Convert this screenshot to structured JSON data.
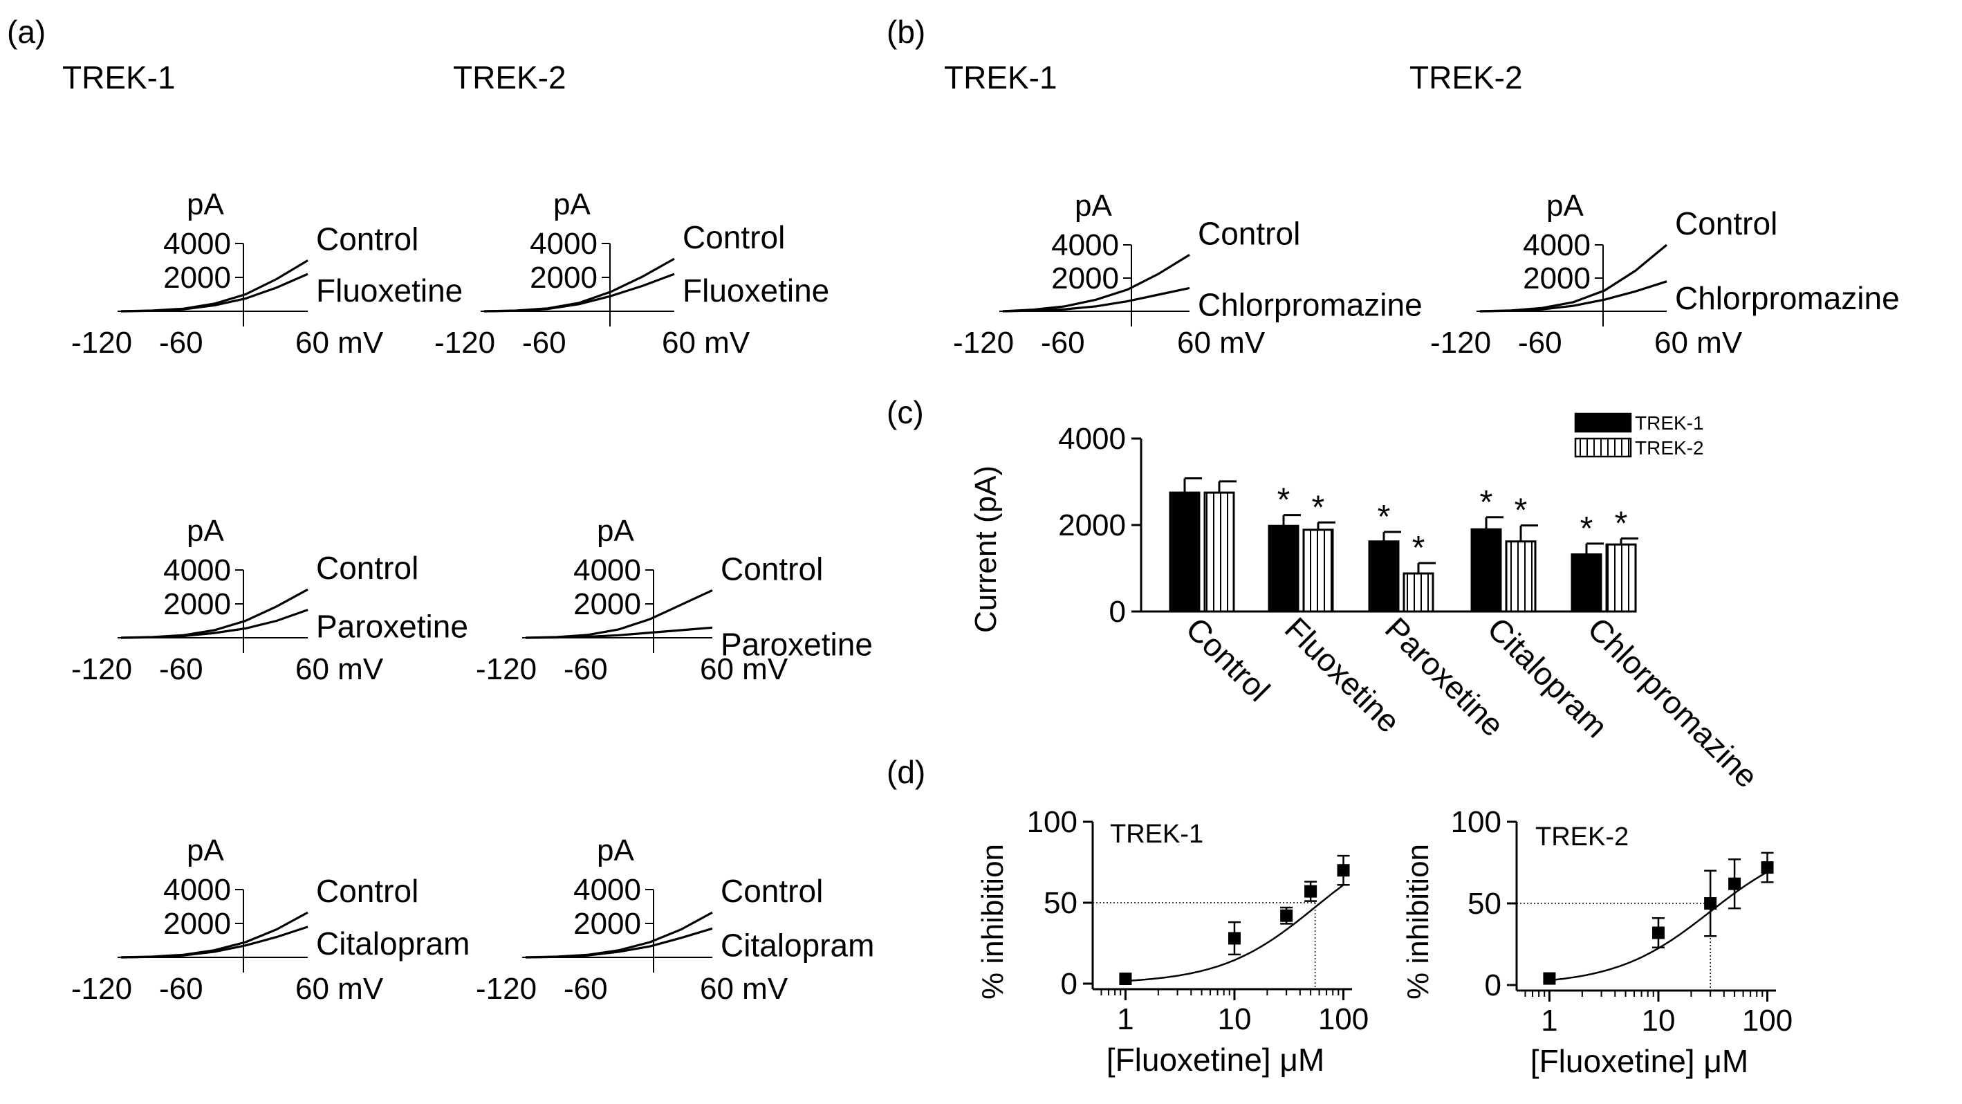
{
  "panel_labels": {
    "a": "(a)",
    "b": "(b)",
    "c": "(c)",
    "d": "(d)"
  },
  "chart_data": [
    {
      "id": "a1",
      "type": "line",
      "panel": "(a)",
      "title": "TREK-1",
      "ylabel": "pA",
      "y_tick_labels": [
        "4000",
        "2000"
      ],
      "x_tick_labels": [
        "-120",
        "-60",
        "60 mV"
      ],
      "xlim": [
        -120,
        60
      ],
      "ylim": [
        0,
        4000
      ],
      "series": [
        {
          "name": "Control",
          "x": [
            -120,
            -90,
            -60,
            -30,
            0,
            30,
            60
          ],
          "values": [
            0,
            40,
            150,
            450,
            1000,
            1900,
            3000
          ]
        },
        {
          "name": "Fluoxetine",
          "x": [
            -120,
            -90,
            -60,
            -30,
            0,
            30,
            60
          ],
          "values": [
            0,
            30,
            120,
            350,
            750,
            1400,
            2200
          ]
        }
      ]
    },
    {
      "id": "a2",
      "type": "line",
      "panel": "(a)",
      "title": "TREK-2",
      "ylabel": "pA",
      "y_tick_labels": [
        "4000",
        "2000"
      ],
      "x_tick_labels": [
        "-120",
        "-60",
        "60 mV"
      ],
      "xlim": [
        -120,
        60
      ],
      "ylim": [
        0,
        4000
      ],
      "series": [
        {
          "name": "Control",
          "x": [
            -120,
            -90,
            -60,
            -30,
            0,
            30,
            60
          ],
          "values": [
            0,
            40,
            170,
            500,
            1150,
            2050,
            3100
          ]
        },
        {
          "name": "Fluoxetine",
          "x": [
            -120,
            -90,
            -60,
            -30,
            0,
            30,
            60
          ],
          "values": [
            0,
            30,
            140,
            420,
            900,
            1500,
            2200
          ]
        }
      ]
    },
    {
      "id": "a3",
      "type": "line",
      "panel": "(a)",
      "title": "",
      "ylabel": "pA",
      "y_tick_labels": [
        "4000",
        "2000"
      ],
      "x_tick_labels": [
        "-120",
        "-60",
        "60 mV"
      ],
      "xlim": [
        -120,
        60
      ],
      "ylim": [
        0,
        4000
      ],
      "series": [
        {
          "name": "Control",
          "x": [
            -120,
            -90,
            -60,
            -30,
            0,
            30,
            60
          ],
          "values": [
            0,
            40,
            150,
            450,
            1000,
            1850,
            2850
          ]
        },
        {
          "name": "Paroxetine",
          "x": [
            -120,
            -90,
            -60,
            -30,
            0,
            30,
            60
          ],
          "values": [
            0,
            30,
            100,
            280,
            550,
            1000,
            1650
          ]
        }
      ]
    },
    {
      "id": "a4",
      "type": "line",
      "panel": "(a)",
      "title": "",
      "ylabel": "pA",
      "y_tick_labels": [
        "4000",
        "2000"
      ],
      "x_tick_labels": [
        "-120",
        "-60",
        "60 mV"
      ],
      "xlim": [
        -120,
        60
      ],
      "ylim": [
        0,
        4000
      ],
      "series": [
        {
          "name": "Control",
          "x": [
            -120,
            -90,
            -60,
            -30,
            0,
            30,
            60
          ],
          "values": [
            0,
            40,
            170,
            500,
            1100,
            1950,
            2800
          ]
        },
        {
          "name": "Paroxetine",
          "x": [
            -120,
            -90,
            -60,
            -30,
            0,
            30,
            60
          ],
          "values": [
            0,
            20,
            60,
            150,
            300,
            450,
            600
          ]
        }
      ]
    },
    {
      "id": "a5",
      "type": "line",
      "panel": "(a)",
      "title": "",
      "ylabel": "pA",
      "y_tick_labels": [
        "4000",
        "2000"
      ],
      "x_tick_labels": [
        "-120",
        "-60",
        "60 mV"
      ],
      "xlim": [
        -120,
        60
      ],
      "ylim": [
        0,
        4000
      ],
      "series": [
        {
          "name": "Control",
          "x": [
            -120,
            -90,
            -60,
            -30,
            0,
            30,
            60
          ],
          "values": [
            0,
            40,
            150,
            420,
            900,
            1650,
            2650
          ]
        },
        {
          "name": "Citalopram",
          "x": [
            -120,
            -90,
            -60,
            -30,
            0,
            30,
            60
          ],
          "values": [
            0,
            30,
            120,
            330,
            700,
            1200,
            1800
          ]
        }
      ]
    },
    {
      "id": "a6",
      "type": "line",
      "panel": "(a)",
      "title": "",
      "ylabel": "pA",
      "y_tick_labels": [
        "4000",
        "2000"
      ],
      "x_tick_labels": [
        "-120",
        "-60",
        "60 mV"
      ],
      "xlim": [
        -120,
        60
      ],
      "ylim": [
        0,
        4000
      ],
      "series": [
        {
          "name": "Control",
          "x": [
            -120,
            -90,
            -60,
            -30,
            0,
            30,
            60
          ],
          "values": [
            0,
            40,
            150,
            420,
            900,
            1650,
            2650
          ]
        },
        {
          "name": "Citalopram",
          "x": [
            -120,
            -90,
            -60,
            -30,
            0,
            30,
            60
          ],
          "values": [
            0,
            30,
            120,
            330,
            650,
            1150,
            1700
          ]
        }
      ]
    },
    {
      "id": "b1",
      "type": "line",
      "panel": "(b)",
      "title": "TREK-1",
      "ylabel": "pA",
      "y_tick_labels": [
        "4000",
        "2000"
      ],
      "x_tick_labels": [
        "-120",
        "-60",
        "60 mV"
      ],
      "xlim": [
        -120,
        60
      ],
      "ylim": [
        0,
        4000
      ],
      "series": [
        {
          "name": "Control",
          "x": [
            -120,
            -90,
            -60,
            -30,
            0,
            30,
            60
          ],
          "values": [
            0,
            100,
            300,
            700,
            1300,
            2250,
            3400
          ]
        },
        {
          "name": "Chlorpromazine",
          "x": [
            -120,
            -90,
            -60,
            -30,
            0,
            30,
            60
          ],
          "values": [
            0,
            40,
            120,
            300,
            600,
            1000,
            1400
          ]
        }
      ]
    },
    {
      "id": "b2",
      "type": "line",
      "panel": "(b)",
      "title": "TREK-2",
      "ylabel": "pA",
      "y_tick_labels": [
        "4000",
        "2000"
      ],
      "x_tick_labels": [
        "-120",
        "-60",
        "60 mV"
      ],
      "xlim": [
        -120,
        60
      ],
      "ylim": [
        0,
        4000
      ],
      "series": [
        {
          "name": "Control",
          "x": [
            -120,
            -90,
            -60,
            -30,
            0,
            30,
            60
          ],
          "values": [
            0,
            50,
            200,
            550,
            1250,
            2450,
            4000
          ]
        },
        {
          "name": "Chlorpromazine",
          "x": [
            -120,
            -90,
            -60,
            -30,
            0,
            30,
            60
          ],
          "values": [
            0,
            30,
            120,
            330,
            700,
            1200,
            1800
          ]
        }
      ]
    },
    {
      "id": "c",
      "type": "bar",
      "panel": "(c)",
      "ylabel": "Current (pA)",
      "ylim": [
        0,
        4000
      ],
      "y_tick_labels": [
        "4000",
        "2000",
        "0"
      ],
      "categories": [
        "Control",
        "Fluoxetine",
        "Paroxetine",
        "Citalopram",
        "Chlorpromazine"
      ],
      "series": [
        {
          "name": "TREK-1",
          "values": [
            2750,
            1980,
            1620,
            1900,
            1320
          ],
          "errors": [
            330,
            250,
            220,
            280,
            250
          ],
          "significant": [
            false,
            true,
            true,
            true,
            true
          ]
        },
        {
          "name": "TREK-2",
          "values": [
            2750,
            1890,
            880,
            1620,
            1550
          ],
          "errors": [
            260,
            170,
            240,
            370,
            140
          ],
          "significant": [
            false,
            true,
            true,
            true,
            true
          ]
        }
      ],
      "sig_marker": "*"
    },
    {
      "id": "d1",
      "type": "scatter",
      "panel": "(d)",
      "title": "TREK-1",
      "xlabel": "[Fluoxetine] μM",
      "ylabel": "% inhibition",
      "x_scale": "log",
      "xlim": [
        0.5,
        120
      ],
      "ylim": [
        0,
        100
      ],
      "y_tick_labels": [
        "100",
        "50",
        "0"
      ],
      "x_tick_labels": [
        "1",
        "10",
        "100"
      ],
      "x": [
        1,
        10,
        30,
        50,
        100
      ],
      "values": [
        3,
        28,
        42,
        57,
        70
      ],
      "errors": [
        2,
        10,
        5,
        6,
        9
      ],
      "half_line_x": 55
    },
    {
      "id": "d2",
      "type": "scatter",
      "panel": "(d)",
      "title": "TREK-2",
      "xlabel": "[Fluoxetine] μM",
      "ylabel": "% inhibition",
      "x_scale": "log",
      "xlim": [
        0.5,
        120
      ],
      "ylim": [
        0,
        100
      ],
      "y_tick_labels": [
        "100",
        "50",
        "0"
      ],
      "x_tick_labels": [
        "1",
        "10",
        "100"
      ],
      "x": [
        1,
        10,
        30,
        50,
        100
      ],
      "values": [
        4,
        32,
        50,
        62,
        72
      ],
      "errors": [
        2,
        9,
        20,
        15,
        9
      ],
      "half_line_x": 30
    }
  ]
}
